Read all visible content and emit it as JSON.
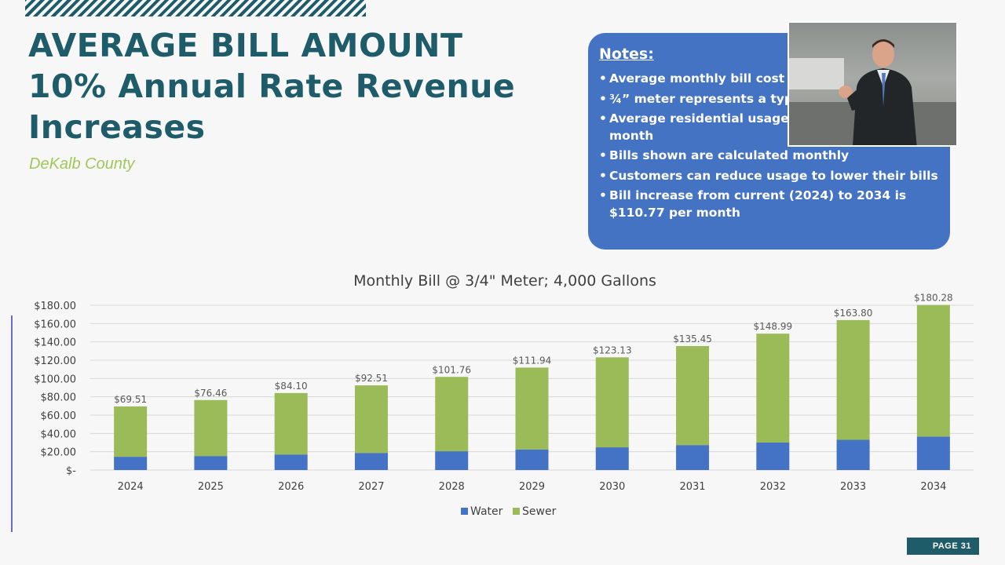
{
  "slide": {
    "title_lines": [
      "AVERAGE BILL AMOUNT",
      "10% Annual Rate Revenue",
      "Increases"
    ],
    "subtitle": "DeKalb County",
    "page_label": "PAGE 31"
  },
  "notes": {
    "heading": "Notes:",
    "items": [
      "Average monthly bill cost",
      "¾” meter represents a typic",
      "Average residential usage is",
      "Bills shown are calculated monthly",
      "Customers can reduce usage to lower their bills",
      "Bill increase from current (2024) to 2034 is $110.77 per month"
    ],
    "item3_cont": "month"
  },
  "colors": {
    "title": "#1f5c6a",
    "water": "#4472c4",
    "sewer": "#9bbb59",
    "notes_bg": "#4473c4"
  },
  "chart_data": {
    "type": "bar",
    "stacked": true,
    "title": "Monthly Bill @ 3/4\" Meter; 4,000 Gallons",
    "categories": [
      "2024",
      "2025",
      "2026",
      "2027",
      "2028",
      "2029",
      "2030",
      "2031",
      "2032",
      "2033",
      "2034"
    ],
    "series": [
      {
        "name": "Water",
        "values": [
          14.5,
          15.3,
          17.0,
          18.7,
          20.5,
          22.5,
          24.8,
          27.3,
          30.0,
          33.0,
          36.5
        ]
      },
      {
        "name": "Sewer",
        "values": [
          55.01,
          61.16,
          67.1,
          73.81,
          81.26,
          89.44,
          98.33,
          108.15,
          118.99,
          130.8,
          143.78
        ]
      }
    ],
    "total_labels": [
      "$69.51",
      "$76.46",
      "$84.10",
      "$92.51",
      "$101.76",
      "$111.94",
      "$123.13",
      "$135.45",
      "$148.99",
      "$163.80",
      "$180.28"
    ],
    "ylim": [
      0,
      180
    ],
    "yticks": [
      0,
      20,
      40,
      60,
      80,
      100,
      120,
      140,
      160,
      180
    ],
    "ytick_labels": [
      "$-",
      "$20.00",
      "$40.00",
      "$60.00",
      "$80.00",
      "$100.00",
      "$120.00",
      "$140.00",
      "$160.00",
      "$180.00"
    ],
    "grid": true,
    "legend": "bottom"
  }
}
